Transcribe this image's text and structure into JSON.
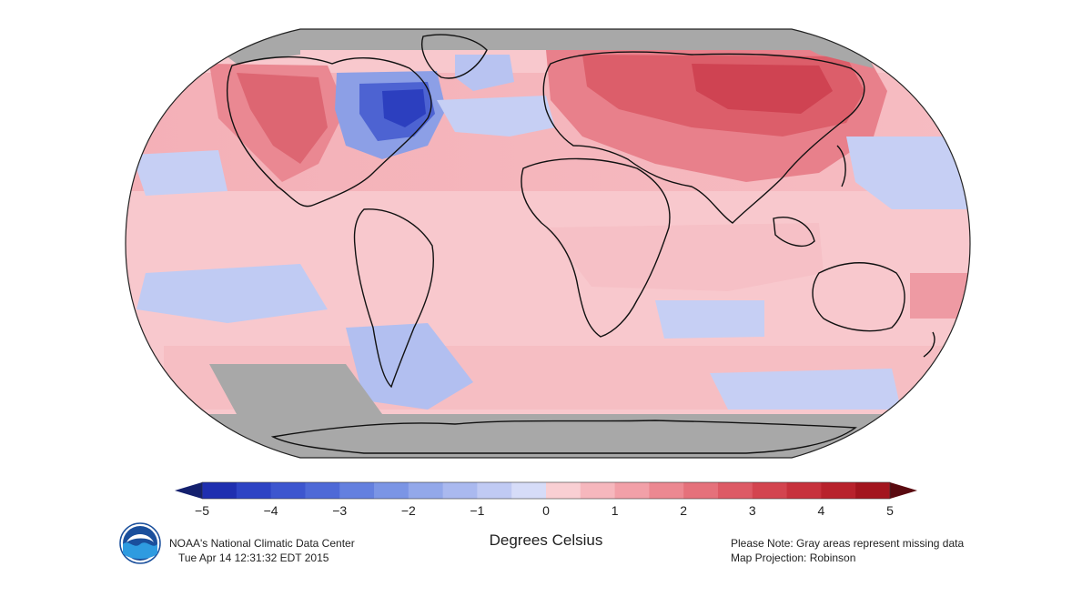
{
  "map": {
    "legend_ticks": [
      "−5",
      "−4",
      "−3",
      "−2",
      "−1",
      "0",
      "1",
      "2",
      "3",
      "4",
      "5"
    ],
    "legend_min": -5,
    "legend_max": 5,
    "legend_step": 0.5,
    "legend_colors": [
      "#1f2fb0",
      "#2d43c4",
      "#3d56cf",
      "#4e69d7",
      "#6480df",
      "#7b95e5",
      "#93a8ea",
      "#aab9ef",
      "#c0caf3",
      "#d6dcf8",
      "#f9cfd3",
      "#f6b7bd",
      "#f2a0a8",
      "#ec8891",
      "#e5717b",
      "#dd5a65",
      "#d3444f",
      "#c7313c",
      "#b8222c",
      "#a3151e"
    ],
    "missing_color": "#a8a8a8",
    "units": "Degrees Celsius"
  },
  "footer": {
    "credit_line1": "NOAA's National Climatic Data Center",
    "credit_line2": "Tue Apr 14 12:31:32 EDT 2015",
    "note_line1": "Please Note: Gray areas represent missing data",
    "note_line2": "Map Projection: Robinson"
  },
  "logo_text": "NOAA"
}
